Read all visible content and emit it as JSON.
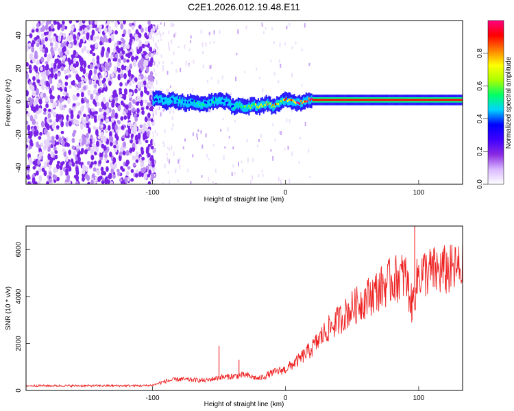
{
  "title": "C2E1.2026.012.19.48.E11",
  "chart_data": [
    {
      "type": "heatmap",
      "panel": "spectrogram",
      "xlabel": "Height of straight line (km)",
      "ylabel": "Frequency (Hz)",
      "xlim": [
        -195,
        133
      ],
      "ylim": [
        -50,
        49
      ],
      "xticks": [
        -100,
        0,
        100
      ],
      "xtick_labels": [
        "-100",
        "0",
        "100"
      ],
      "yticks": [
        -40,
        -20,
        0,
        20,
        40
      ],
      "ytick_labels": [
        "-40",
        "-20",
        "0",
        "20",
        "40"
      ],
      "noise_region_x": [
        -195,
        -100
      ],
      "carrier_trace": {
        "x": [
          -100,
          -95,
          -90,
          -85,
          -80,
          -75,
          -70,
          -65,
          -60,
          -55,
          -50,
          -45,
          -40,
          -35,
          -30,
          -25,
          -20,
          -15,
          -10,
          -5,
          0,
          5,
          10,
          15,
          20,
          40,
          60,
          80,
          95,
          133
        ],
        "freq": [
          1,
          2,
          0,
          1,
          0,
          -1,
          0,
          -2,
          -1,
          0,
          1,
          0,
          -3,
          -2,
          -4,
          -2,
          -3,
          -1,
          -3,
          -1,
          1,
          0,
          -1,
          1,
          1,
          1,
          1,
          1,
          1,
          1
        ],
        "amplitude": [
          0.35,
          0.45,
          0.5,
          0.45,
          0.5,
          0.4,
          0.45,
          0.55,
          0.5,
          0.45,
          0.5,
          0.4,
          0.45,
          0.55,
          0.6,
          0.65,
          0.7,
          0.75,
          0.8,
          0.7,
          0.85,
          0.9,
          0.95,
          0.9,
          0.95,
          0.95,
          0.95,
          0.95,
          0.9,
          0.95
        ]
      },
      "colorbar": {
        "label": "Normalized spectral amplitude",
        "range": [
          0,
          1
        ],
        "ticks": [
          0.0,
          0.2,
          0.4,
          0.6,
          0.8
        ],
        "tick_labels": [
          "0.0",
          "0.2",
          "0.4",
          "0.6",
          "0.8"
        ],
        "colors": [
          "#ffffff",
          "#d9b8ff",
          "#8a2be2",
          "#3f00ff",
          "#0000ff",
          "#00d5ff",
          "#00ff66",
          "#aaff00",
          "#ffff00",
          "#ff8000",
          "#ff0000",
          "#ff0080"
        ]
      }
    },
    {
      "type": "line",
      "panel": "snr",
      "xlabel": "Height of straight line (km)",
      "ylabel": "SNR (10 * v/v)",
      "xlim": [
        -195,
        133
      ],
      "ylim": [
        0,
        7000
      ],
      "xticks": [
        -100,
        0,
        100
      ],
      "xtick_labels": [
        "-100",
        "0",
        "100"
      ],
      "yticks": [
        0,
        2000,
        4000,
        6000
      ],
      "ytick_labels": [
        "0",
        "2000",
        "4000",
        "6000"
      ],
      "line_color": "#ee2222",
      "series": [
        {
          "name": "SNR",
          "x": [
            -195,
            -170,
            -150,
            -130,
            -110,
            -100,
            -90,
            -80,
            -70,
            -60,
            -50,
            -40,
            -30,
            -20,
            -10,
            0,
            10,
            20,
            30,
            40,
            50,
            60,
            70,
            80,
            90,
            95,
            100,
            110,
            120,
            133
          ],
          "values": [
            200,
            200,
            200,
            200,
            200,
            220,
            400,
            480,
            450,
            420,
            550,
            600,
            650,
            500,
            750,
            900,
            1300,
            1800,
            2500,
            3000,
            3500,
            3900,
            4300,
            4700,
            4900,
            3600,
            5000,
            5050,
            5100,
            5150
          ],
          "spikes": [
            {
              "x": -50,
              "value": 1900
            },
            {
              "x": -35,
              "value": 1300
            },
            {
              "x": 97,
              "value": 7000
            },
            {
              "x": 95,
              "value": 3000
            }
          ]
        }
      ]
    }
  ]
}
